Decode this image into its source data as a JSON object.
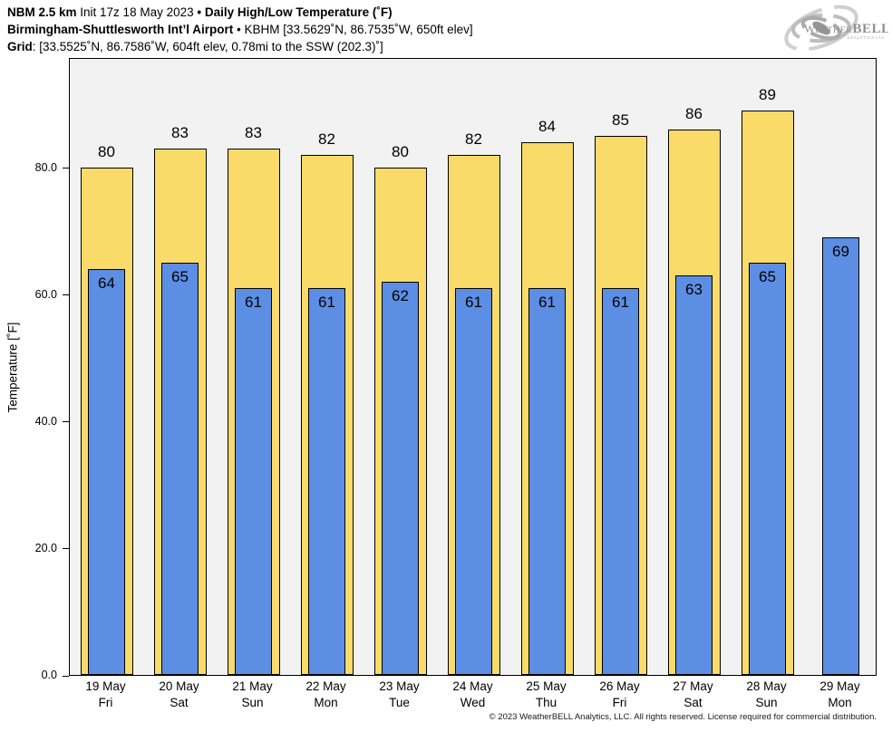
{
  "header": {
    "line1_bold1": "NBM 2.5 km",
    "line1_regular": " Init 17z 18 May 2023 ",
    "line1_bullet": "•",
    "line1_bold2": " Daily High/Low Temperature (˚F)",
    "line2_bold": "Birmingham-Shuttlesworth Int’l Airport",
    "line2_regular": " • KBHM [33.5629˚N, 86.7535˚W, 650ft elev]",
    "line3_bold": "Grid",
    "line3_regular": ": [33.5525˚N, 86.7586˚W, 604ft elev, 0.78mi to the SSW (202.3)˚]"
  },
  "logo": {
    "word_main_1": "Weather",
    "word_main_2": "BELL",
    "word_sub": "Analytics LLC"
  },
  "chart_data": {
    "type": "bar",
    "title": "NBM 2.5 km Init 17z 18 May 2023 • Daily High/Low Temperature (˚F)",
    "xlabel": "",
    "ylabel": "Temperature [˚F]",
    "ylim": [
      0,
      97.4
    ],
    "grid": false,
    "legend": "none",
    "plot_bg": "#f2f2f2",
    "yticks": [
      0,
      20,
      40,
      60,
      80
    ],
    "ytick_labels": [
      "0.0",
      "20.0",
      "40.0",
      "60.0",
      "80.0"
    ],
    "categories": [
      {
        "date": "19 May",
        "day": "Fri"
      },
      {
        "date": "20 May",
        "day": "Sat"
      },
      {
        "date": "21 May",
        "day": "Sun"
      },
      {
        "date": "22 May",
        "day": "Mon"
      },
      {
        "date": "23 May",
        "day": "Tue"
      },
      {
        "date": "24 May",
        "day": "Wed"
      },
      {
        "date": "25 May",
        "day": "Thu"
      },
      {
        "date": "26 May",
        "day": "Fri"
      },
      {
        "date": "27 May",
        "day": "Sat"
      },
      {
        "date": "28 May",
        "day": "Sun"
      },
      {
        "date": "29 May",
        "day": "Mon"
      }
    ],
    "series": [
      {
        "name": "Daily High",
        "color": "#fadb69",
        "values": [
          80,
          83,
          83,
          82,
          80,
          82,
          84,
          85,
          86,
          89,
          null
        ]
      },
      {
        "name": "Daily Low",
        "color": "#5c8ee4",
        "values": [
          64,
          65,
          61,
          61,
          62,
          61,
          61,
          61,
          63,
          65,
          69
        ]
      }
    ]
  },
  "footer": "© 2023 WeatherBELL Analytics, LLC. All rights reserved. License required for commercial distribution."
}
